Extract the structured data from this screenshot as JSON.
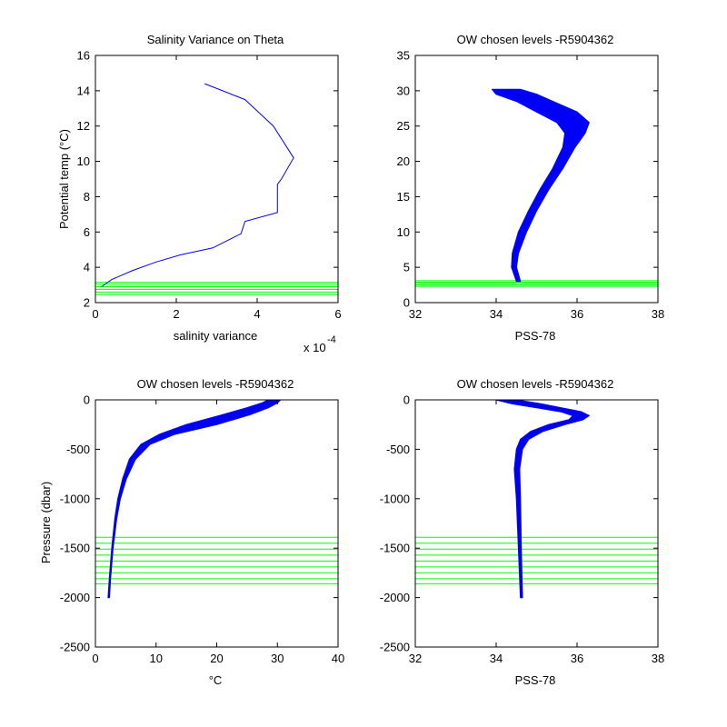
{
  "colors": {
    "profile": "#0000ff",
    "levels": "#00ff00",
    "axes": "#000000"
  },
  "chart_data": [
    {
      "type": "line",
      "panel": "top-left",
      "title": "Salinity Variance on Theta",
      "xlabel": "salinity variance",
      "ylabel": "Potential temp (°C)",
      "x_exponent_label": "x 10",
      "x_exponent_power": "-4",
      "xlim": [
        0,
        6
      ],
      "ylim": [
        2,
        16
      ],
      "xticks": [
        "0",
        "2",
        "4",
        "6"
      ],
      "yticks": [
        "2",
        "4",
        "6",
        "8",
        "10",
        "12",
        "14",
        "16"
      ],
      "series": [
        {
          "x": [
            0.15,
            0.4,
            0.9,
            1.5,
            2.1,
            2.9,
            3.6,
            3.7,
            4.5,
            4.5,
            4.6,
            4.9,
            4.4,
            3.7,
            2.7
          ],
          "y": [
            2.9,
            3.3,
            3.8,
            4.3,
            4.7,
            5.1,
            5.9,
            6.6,
            7.1,
            8.7,
            9.0,
            10.2,
            12.0,
            13.5,
            14.4
          ]
        }
      ],
      "hlines": [
        2.45,
        2.6,
        2.75,
        2.9,
        3.05,
        3.15
      ]
    },
    {
      "type": "line",
      "panel": "top-right",
      "title": "OW chosen levels -R5904362",
      "xlabel": "PSS-78",
      "xlim": [
        32,
        38
      ],
      "ylim": [
        0,
        35
      ],
      "xticks": [
        "32",
        "34",
        "36",
        "38"
      ],
      "yticks": [
        "0",
        "5",
        "10",
        "15",
        "20",
        "25",
        "30",
        "35"
      ],
      "profile_band": {
        "y": [
          3.0,
          5.0,
          7.0,
          10.0,
          13.0,
          16.0,
          19.0,
          22.0,
          24.0,
          25.5,
          27.0,
          28.5,
          29.5,
          30.2
        ],
        "x_min": [
          34.5,
          34.38,
          34.4,
          34.55,
          34.8,
          35.08,
          35.4,
          35.65,
          35.7,
          35.5,
          35.0,
          34.5,
          34.0,
          33.9
        ],
        "x_max": [
          34.6,
          34.5,
          34.55,
          34.75,
          35.0,
          35.3,
          35.65,
          35.95,
          36.2,
          36.3,
          36.0,
          35.4,
          35.0,
          34.6
        ]
      },
      "hlines": [
        2.3,
        2.5,
        2.7,
        2.9,
        3.1
      ]
    },
    {
      "type": "line",
      "panel": "bottom-left",
      "title": "OW chosen levels -R5904362",
      "xlabel": "°C",
      "ylabel": "Pressure (dbar)",
      "xlim": [
        0,
        40
      ],
      "ylim": [
        -2500,
        0
      ],
      "xticks": [
        "0",
        "10",
        "20",
        "30",
        "40"
      ],
      "yticks": [
        "-2500",
        "-2000",
        "-1500",
        "-1000",
        "-500",
        "0"
      ],
      "profile_band": {
        "y": [
          -2000,
          -1800,
          -1500,
          -1200,
          -1000,
          -800,
          -600,
          -450,
          -350,
          -250,
          -150,
          -80,
          -30,
          0
        ],
        "x_min": [
          2.1,
          2.3,
          2.7,
          3.2,
          3.7,
          4.5,
          5.6,
          7.5,
          10.5,
          15.0,
          21.0,
          25.0,
          27.5,
          28.5
        ],
        "x_max": [
          2.3,
          2.5,
          2.9,
          3.5,
          4.1,
          5.1,
          6.6,
          9.0,
          13.0,
          20.0,
          25.5,
          28.5,
          30.0,
          30.5
        ]
      },
      "hlines": [
        -1390,
        -1450,
        -1510,
        -1570,
        -1630,
        -1690,
        -1750,
        -1810,
        -1860
      ]
    },
    {
      "type": "line",
      "panel": "bottom-right",
      "title": "OW chosen levels -R5904362",
      "xlabel": "PSS-78",
      "xlim": [
        32,
        38
      ],
      "ylim": [
        -2500,
        0
      ],
      "xticks": [
        "32",
        "34",
        "36",
        "38"
      ],
      "yticks": [
        "-2500",
        "-2000",
        "-1500",
        "-1000",
        "-500",
        "0"
      ],
      "profile_band": {
        "y": [
          -2000,
          -1500,
          -1000,
          -700,
          -500,
          -400,
          -320,
          -250,
          -200,
          -160,
          -120,
          -80,
          -40,
          0
        ],
        "x_min": [
          34.6,
          34.55,
          34.5,
          34.45,
          34.5,
          34.6,
          34.85,
          35.3,
          35.8,
          35.9,
          35.6,
          35.0,
          34.4,
          34.0
        ],
        "x_max": [
          34.65,
          34.62,
          34.6,
          34.58,
          34.65,
          34.8,
          35.15,
          35.7,
          36.15,
          36.3,
          36.1,
          35.6,
          35.1,
          34.5
        ]
      },
      "hlines": [
        -1390,
        -1450,
        -1510,
        -1570,
        -1630,
        -1690,
        -1750,
        -1810,
        -1860
      ]
    }
  ]
}
